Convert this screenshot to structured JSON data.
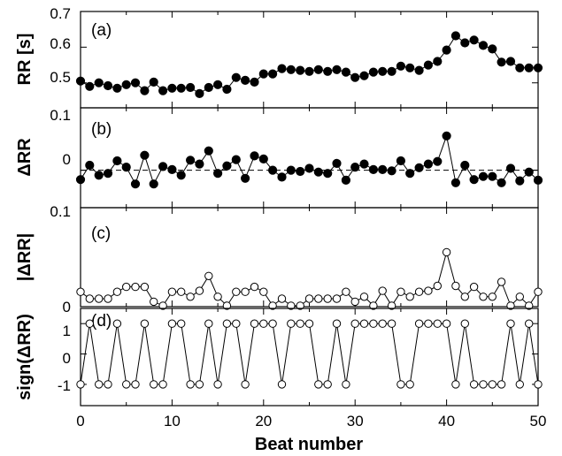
{
  "chart_data": [
    {
      "type": "scatter",
      "panel_label": "(a)",
      "ylabel": "RR [s]",
      "marker": "filled-circle",
      "connected": true,
      "x": [
        0,
        1,
        2,
        3,
        4,
        5,
        6,
        7,
        8,
        9,
        10,
        11,
        12,
        13,
        14,
        15,
        16,
        17,
        18,
        19,
        20,
        21,
        22,
        23,
        24,
        25,
        26,
        27,
        28,
        29,
        30,
        31,
        32,
        33,
        34,
        35,
        36,
        37,
        38,
        39,
        40,
        41,
        42,
        43,
        44,
        45,
        46,
        47,
        48,
        49,
        50
      ],
      "y": [
        0.505,
        0.49,
        0.5,
        0.492,
        0.485,
        0.495,
        0.5,
        0.478,
        0.502,
        0.478,
        0.485,
        0.485,
        0.487,
        0.47,
        0.487,
        0.495,
        0.482,
        0.515,
        0.507,
        0.502,
        0.525,
        0.525,
        0.54,
        0.537,
        0.535,
        0.532,
        0.537,
        0.532,
        0.537,
        0.53,
        0.515,
        0.52,
        0.53,
        0.532,
        0.532,
        0.547,
        0.542,
        0.535,
        0.55,
        0.56,
        0.592,
        0.632,
        0.612,
        0.62,
        0.605,
        0.595,
        0.558,
        0.56,
        0.542,
        0.542,
        0.542
      ],
      "yticks": [
        "0.5",
        "0.6",
        "0.7"
      ],
      "ylim": [
        0.43,
        0.7
      ],
      "grid": false
    },
    {
      "type": "scatter",
      "panel_label": "(b)",
      "ylabel": "ΔRR",
      "marker": "filled-circle",
      "connected": true,
      "reference_line": 0,
      "x": [
        0,
        1,
        2,
        3,
        4,
        5,
        6,
        7,
        8,
        9,
        10,
        11,
        12,
        13,
        14,
        15,
        16,
        17,
        18,
        19,
        20,
        21,
        22,
        23,
        24,
        25,
        26,
        27,
        28,
        29,
        30,
        31,
        32,
        33,
        34,
        35,
        36,
        37,
        38,
        39,
        40,
        41,
        42,
        43,
        44,
        45,
        46,
        47,
        48,
        49,
        50
      ],
      "y": [
        -0.015,
        0.008,
        -0.008,
        -0.005,
        0.015,
        0.005,
        -0.022,
        0.024,
        -0.022,
        0.006,
        0.001,
        -0.008,
        0.016,
        0.01,
        0.031,
        -0.005,
        0.007,
        0.017,
        -0.013,
        0.023,
        0.018,
        0.0,
        -0.011,
        0.0,
        -0.002,
        0.003,
        -0.003,
        -0.005,
        0.011,
        -0.016,
        0.005,
        0.01,
        0.001,
        0.001,
        -0.001,
        0.015,
        -0.005,
        0.004,
        0.01,
        0.014,
        0.055,
        -0.02,
        0.008,
        -0.015,
        -0.01,
        -0.01,
        -0.02,
        0.003,
        -0.017,
        -0.003,
        -0.016
      ],
      "yticks": [
        "0",
        "0.1"
      ],
      "ylim": [
        -0.06,
        0.1
      ],
      "grid": false
    },
    {
      "type": "scatter",
      "panel_label": "(c)",
      "ylabel": "|ΔRR|",
      "marker": "open-circle",
      "connected": true,
      "x": [
        0,
        1,
        2,
        3,
        4,
        5,
        6,
        7,
        8,
        9,
        10,
        11,
        12,
        13,
        14,
        15,
        16,
        17,
        18,
        19,
        20,
        21,
        22,
        23,
        24,
        25,
        26,
        27,
        28,
        29,
        30,
        31,
        32,
        33,
        34,
        35,
        36,
        37,
        38,
        39,
        40,
        41,
        42,
        43,
        44,
        45,
        46,
        47,
        48,
        49,
        50
      ],
      "y": [
        0.015,
        0.008,
        0.008,
        0.008,
        0.015,
        0.02,
        0.02,
        0.02,
        0.005,
        0.001,
        0.015,
        0.015,
        0.01,
        0.016,
        0.031,
        0.01,
        0.001,
        0.015,
        0.015,
        0.02,
        0.015,
        0.001,
        0.008,
        0.001,
        0.001,
        0.008,
        0.008,
        0.008,
        0.008,
        0.015,
        0.005,
        0.01,
        0.001,
        0.016,
        0.001,
        0.015,
        0.01,
        0.015,
        0.016,
        0.021,
        0.055,
        0.021,
        0.01,
        0.02,
        0.01,
        0.01,
        0.025,
        0.001,
        0.01,
        0.001,
        0.015
      ],
      "yticks": [
        "0",
        "0.1"
      ],
      "ylim": [
        0,
        0.1
      ],
      "grid": false
    },
    {
      "type": "scatter",
      "panel_label": "(d)",
      "ylabel": "sign(ΔRR)",
      "xlabel": "Beat number",
      "marker": "open-circle",
      "connected": true,
      "x": [
        0,
        1,
        2,
        3,
        4,
        5,
        6,
        7,
        8,
        9,
        10,
        11,
        12,
        13,
        14,
        15,
        16,
        17,
        18,
        19,
        20,
        21,
        22,
        23,
        24,
        25,
        26,
        27,
        28,
        29,
        30,
        31,
        32,
        33,
        34,
        35,
        36,
        37,
        38,
        39,
        40,
        41,
        42,
        43,
        44,
        45,
        46,
        47,
        48,
        49,
        50
      ],
      "y": [
        -1,
        1,
        -1,
        -1,
        1,
        -1,
        -1,
        1,
        -1,
        -1,
        1,
        1,
        -1,
        -1,
        1,
        -1,
        1,
        1,
        -1,
        1,
        1,
        1,
        -1,
        1,
        1,
        1,
        -1,
        -1,
        1,
        -1,
        1,
        1,
        1,
        1,
        1,
        -1,
        -1,
        1,
        1,
        1,
        1,
        -1,
        1,
        -1,
        -1,
        -1,
        -1,
        1,
        -1,
        1,
        -1
      ],
      "xticks": [
        "0",
        "10",
        "20",
        "30",
        "40",
        "50"
      ],
      "xlim": [
        0,
        50
      ],
      "yticks": [
        "-1",
        "0",
        "1"
      ],
      "ylim": [
        -1.7,
        1.5
      ],
      "grid": false
    }
  ]
}
